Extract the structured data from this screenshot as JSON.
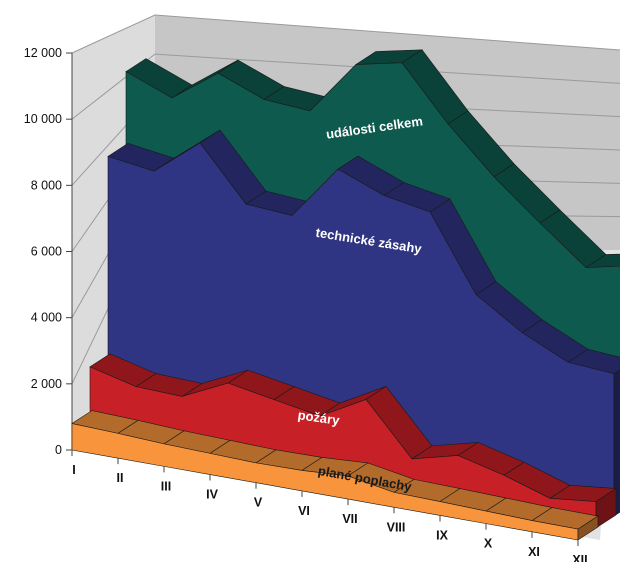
{
  "chart_data": {
    "type": "area",
    "subtype": "3d-stacked-ribbon",
    "categories": [
      "I",
      "II",
      "III",
      "IV",
      "V",
      "VI",
      "VII",
      "VIII",
      "IX",
      "X",
      "XI",
      "XII"
    ],
    "y_ticks": [
      "0",
      "2 000",
      "4 000",
      "6 000",
      "8 000",
      "10 000",
      "12 000"
    ],
    "ylim": [
      0,
      12000
    ],
    "grid": true,
    "series": [
      {
        "name": "události celkem",
        "color": "#0e5a4e",
        "values": [
          10350,
          9800,
          10800,
          10250,
          10150,
          11800,
          12100,
          10500,
          9150,
          8000,
          6900,
          7200
        ]
      },
      {
        "name": "technické zásahy",
        "color": "#2f3483",
        "values": [
          8150,
          7950,
          9050,
          7450,
          7350,
          9000,
          8450,
          8200,
          5950,
          5050,
          4400,
          4300
        ]
      },
      {
        "name": "požáry",
        "color": "#c72026",
        "values": [
          2150,
          1800,
          1750,
          2400,
          2150,
          1900,
          2650,
          1100,
          1450,
          1100,
          650,
          800
        ]
      },
      {
        "name": "plané poplachy",
        "color": "#f7943c",
        "values": [
          800,
          750,
          680,
          640,
          600,
          620,
          700,
          450,
          420,
          380,
          340,
          330
        ]
      }
    ]
  }
}
